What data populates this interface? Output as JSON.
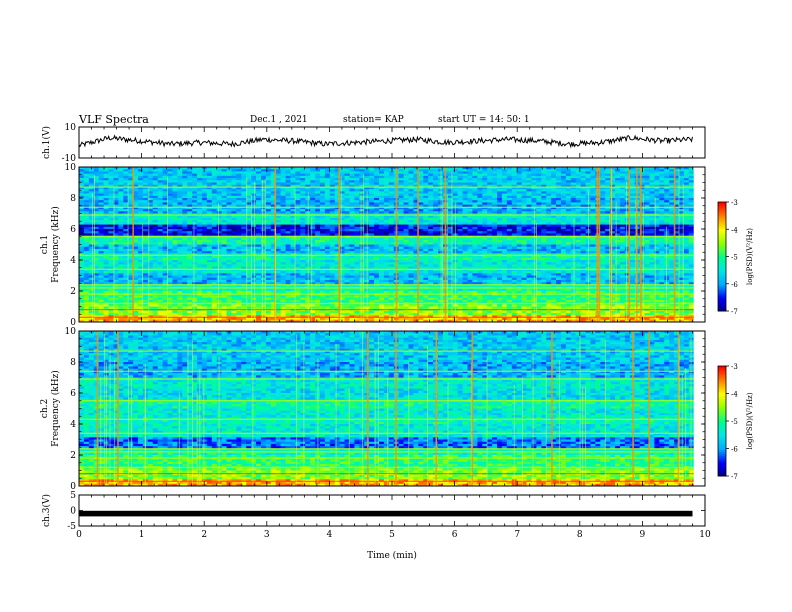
{
  "header": {
    "title": "VLF Spectra",
    "date": "Dec.1 , 2021",
    "station": "station= KAP",
    "start": "start UT = 14: 50: 1"
  },
  "colors": {
    "trace": "#000000",
    "colormap": [
      "#000080",
      "#0000ff",
      "#00bfff",
      "#00ffff",
      "#00ff7f",
      "#7fff00",
      "#ffff00",
      "#ff8000",
      "#ff0000",
      "#ffffff"
    ]
  },
  "chart_data": [
    {
      "type": "line",
      "ylabel": "ch.1(V)",
      "ylim": [
        -10,
        10
      ],
      "yticks": [
        "10",
        "-10"
      ],
      "xlim": [
        0,
        10
      ],
      "description_values": [
        0,
        0.5,
        1,
        1.5,
        2,
        2.5,
        3,
        3.5,
        4,
        4.5,
        5,
        5.5,
        6,
        6.5,
        7,
        7.5,
        8,
        8.5,
        9,
        9.5,
        9.8
      ],
      "values": [
        -2,
        3,
        1,
        -1,
        0,
        -1,
        2,
        1,
        -1,
        0,
        1,
        2,
        0,
        1,
        2,
        1,
        -1,
        0,
        3,
        1,
        2
      ]
    },
    {
      "type": "heatmap",
      "ylabel_line1": "ch.1",
      "ylabel_line2": "Frequency (kHz)",
      "ylim": [
        0,
        10
      ],
      "yticks": [
        "0",
        "2",
        "4",
        "6",
        "8",
        "10"
      ],
      "xlim": [
        0,
        10
      ],
      "colorbar": {
        "label": "log(PSD)(V²/Hz)",
        "range": [
          -7,
          -3
        ],
        "ticks": [
          "-3",
          "-4",
          "-5",
          "-6",
          "-7"
        ]
      }
    },
    {
      "type": "heatmap",
      "ylabel_line1": "ch.2",
      "ylabel_line2": "Frequency (kHz)",
      "ylim": [
        0,
        10
      ],
      "yticks": [
        "0",
        "2",
        "4",
        "6",
        "8",
        "10"
      ],
      "xlim": [
        0,
        10
      ],
      "colorbar": {
        "label": "log(PSD)(V²/Hz)",
        "range": [
          -7,
          -3
        ],
        "ticks": [
          "-3",
          "-4",
          "-5",
          "-6",
          "-7"
        ]
      }
    },
    {
      "type": "line",
      "ylabel": "ch.3(V)",
      "ylim": [
        -5,
        5
      ],
      "yticks": [
        "5",
        "0",
        "-5"
      ],
      "xlim": [
        0,
        10
      ],
      "x": [
        0,
        9.8
      ],
      "values": [
        -1,
        -1
      ]
    }
  ],
  "xaxis": {
    "label": "Time (min)",
    "ticks": [
      "0",
      "1",
      "2",
      "3",
      "4",
      "5",
      "6",
      "7",
      "8",
      "9",
      "10"
    ]
  }
}
